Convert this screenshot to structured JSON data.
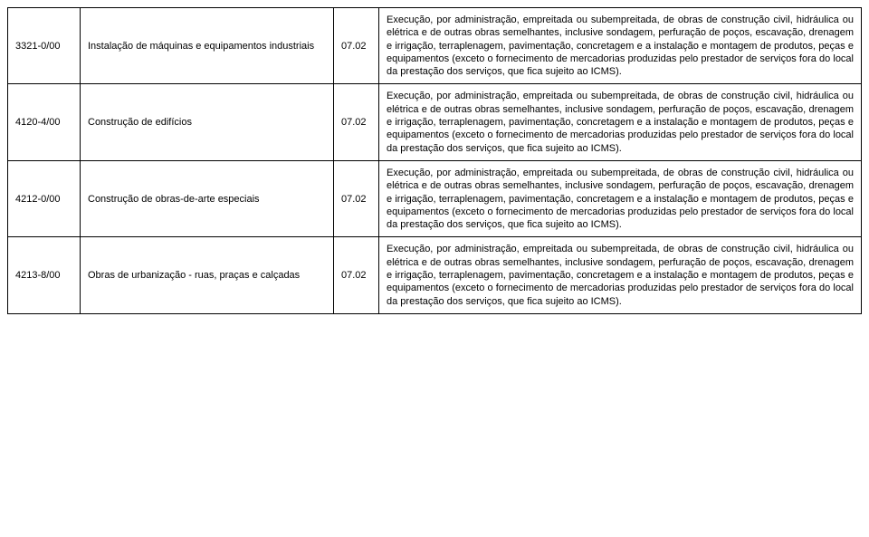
{
  "table": {
    "columns": [
      "code",
      "description",
      "number",
      "details"
    ],
    "col_widths": [
      "80px",
      "280px",
      "50px",
      "auto"
    ],
    "border_color": "#000000",
    "background_color": "#ffffff",
    "font_size": 11,
    "rows": [
      {
        "code": "3321-0/00",
        "description": "Instalação de máquinas e equipamentos industriais",
        "number": "07.02",
        "details": "Execução, por administração, empreitada ou subempreitada, de obras de construção civil, hidráulica ou elétrica e de outras obras semelhantes, inclusive sondagem, perfuração de poços, escavação, drenagem e irrigação, terraplenagem, pavimentação, concretagem e a instalação e montagem de produtos, peças e equipamentos (exceto o fornecimento de mercadorias produzidas pelo prestador de serviços fora do local da prestação dos serviços, que fica sujeito ao ICMS)."
      },
      {
        "code": "4120-4/00",
        "description": "Construção de edifícios",
        "number": "07.02",
        "details": "Execução, por administração, empreitada ou subempreitada, de obras de construção civil, hidráulica ou elétrica e de outras obras semelhantes, inclusive sondagem, perfuração de poços, escavação, drenagem e irrigação, terraplenagem, pavimentação, concretagem e a instalação e montagem de produtos, peças e equipamentos (exceto o fornecimento de mercadorias produzidas pelo prestador de serviços fora do local da prestação dos serviços, que fica sujeito ao ICMS)."
      },
      {
        "code": "4212-0/00",
        "description": "Construção de obras-de-arte especiais",
        "number": "07.02",
        "details": "Execução, por administração, empreitada ou subempreitada, de obras de construção civil, hidráulica ou elétrica e de outras obras semelhantes, inclusive sondagem, perfuração de poços, escavação, drenagem e irrigação, terraplenagem, pavimentação, concretagem e a instalação e montagem de produtos, peças e equipamentos (exceto o fornecimento de mercadorias produzidas pelo prestador de serviços fora do local da prestação dos serviços, que fica sujeito ao ICMS)."
      },
      {
        "code": "4213-8/00",
        "description": "Obras de urbanização - ruas, praças e calçadas",
        "number": "07.02",
        "details": "Execução, por administração, empreitada ou subempreitada, de obras de construção civil, hidráulica ou elétrica e de outras obras semelhantes, inclusive sondagem, perfuração de poços, escavação, drenagem e irrigação, terraplenagem, pavimentação, concretagem e a instalação e montagem de produtos, peças e equipamentos (exceto o fornecimento de mercadorias produzidas pelo prestador de serviços fora do local da prestação dos serviços, que fica sujeito ao ICMS)."
      }
    ]
  }
}
